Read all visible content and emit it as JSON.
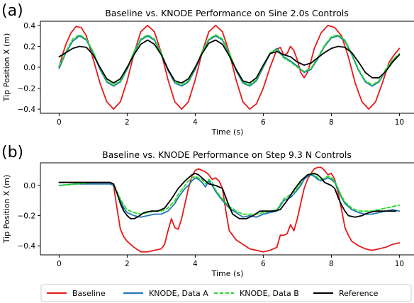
{
  "figure": {
    "panels": [
      {
        "label": "(a)",
        "title": "Baseline vs. KNODE Performance on Sine 2.0s Controls",
        "xlabel": "Time (s)",
        "ylabel": "Tip Position X (m)",
        "xticks": [
          "0",
          "2",
          "4",
          "6",
          "8",
          "10"
        ],
        "yticks": [
          "−0.4",
          "−0.2",
          "0.0",
          "0.2",
          "0.4"
        ]
      },
      {
        "label": "(b)",
        "title": "Baseline vs. KNODE Performance on Step 9.3 N Controls",
        "xlabel": "Time (s)",
        "ylabel": "Tip Position X (m)",
        "xticks": [
          "0",
          "2",
          "4",
          "6",
          "8",
          "10"
        ],
        "yticks": [
          "−0.4",
          "−0.2",
          "0.0"
        ]
      }
    ],
    "legend": [
      "Baseline",
      "KNODE, Data A",
      "KNODE, Data B",
      "Reference"
    ]
  },
  "chart_data": [
    {
      "type": "line",
      "title": "Baseline vs. KNODE Performance on Sine 2.0s Controls",
      "xlabel": "Time (s)",
      "ylabel": "Tip Position X (m)",
      "xlim": [
        -0.55,
        10.45
      ],
      "ylim": [
        -0.44,
        0.44
      ],
      "grid": false,
      "series": [
        {
          "name": "Baseline",
          "color": "#e8191b",
          "dash": "solid",
          "x": [
            0,
            0.1,
            0.2,
            0.35,
            0.5,
            0.65,
            0.8,
            1.0,
            1.2,
            1.4,
            1.6,
            1.8,
            2.0,
            2.2,
            2.4,
            2.6,
            2.8,
            3.0,
            3.2,
            3.4,
            3.6,
            3.8,
            4.0,
            4.2,
            4.4,
            4.6,
            4.8,
            5.0,
            5.2,
            5.4,
            5.6,
            5.8,
            6.0,
            6.2,
            6.4,
            6.5,
            6.6,
            6.7,
            6.8,
            6.9,
            7.0,
            7.1,
            7.2,
            7.3,
            7.4,
            7.5,
            7.7,
            7.9,
            8.1,
            8.3,
            8.5,
            8.7,
            8.9,
            9.1,
            9.3,
            9.5,
            9.7,
            9.85,
            10.0
          ],
          "y": [
            0.0,
            0.12,
            0.22,
            0.33,
            0.39,
            0.38,
            0.3,
            0.08,
            -0.15,
            -0.33,
            -0.4,
            -0.33,
            -0.13,
            0.13,
            0.34,
            0.4,
            0.34,
            0.14,
            -0.12,
            -0.33,
            -0.4,
            -0.33,
            -0.12,
            0.14,
            0.34,
            0.4,
            0.34,
            0.14,
            -0.12,
            -0.33,
            -0.4,
            -0.35,
            -0.2,
            0.0,
            0.17,
            0.19,
            0.12,
            0.13,
            0.2,
            0.16,
            0.07,
            -0.05,
            -0.1,
            -0.05,
            0.06,
            0.18,
            0.33,
            0.4,
            0.38,
            0.3,
            0.1,
            -0.15,
            -0.33,
            -0.4,
            -0.33,
            -0.15,
            0.05,
            0.12,
            0.18
          ]
        },
        {
          "name": "KNODE, Data A",
          "color": "#1f77b4",
          "dash": "solid",
          "x": [
            0,
            0.2,
            0.4,
            0.6,
            0.8,
            1.0,
            1.2,
            1.4,
            1.6,
            1.8,
            2.0,
            2.2,
            2.4,
            2.6,
            2.8,
            3.0,
            3.2,
            3.4,
            3.6,
            3.8,
            4.0,
            4.2,
            4.4,
            4.6,
            4.8,
            5.0,
            5.2,
            5.4,
            5.6,
            5.8,
            6.0,
            6.2,
            6.4,
            6.6,
            6.8,
            7.0,
            7.2,
            7.4,
            7.6,
            7.8,
            8.0,
            8.2,
            8.4,
            8.6,
            8.8,
            9.0,
            9.2,
            9.4,
            9.6,
            9.8,
            10.0
          ],
          "y": [
            -0.01,
            0.14,
            0.25,
            0.3,
            0.26,
            0.14,
            -0.02,
            -0.14,
            -0.18,
            -0.14,
            -0.02,
            0.14,
            0.26,
            0.3,
            0.26,
            0.13,
            -0.03,
            -0.15,
            -0.18,
            -0.14,
            -0.02,
            0.14,
            0.26,
            0.3,
            0.26,
            0.13,
            -0.03,
            -0.15,
            -0.18,
            -0.13,
            0.0,
            0.13,
            0.18,
            0.1,
            0.06,
            0.01,
            -0.05,
            -0.02,
            0.08,
            0.2,
            0.28,
            0.3,
            0.25,
            0.12,
            -0.03,
            -0.14,
            -0.18,
            -0.14,
            -0.03,
            0.06,
            0.12
          ]
        },
        {
          "name": "KNODE, Data B",
          "color": "#22dd22",
          "dash": "dashed",
          "x": [
            0,
            0.2,
            0.4,
            0.6,
            0.8,
            1.0,
            1.2,
            1.4,
            1.6,
            1.8,
            2.0,
            2.2,
            2.4,
            2.6,
            2.8,
            3.0,
            3.2,
            3.4,
            3.6,
            3.8,
            4.0,
            4.2,
            4.4,
            4.6,
            4.8,
            5.0,
            5.2,
            5.4,
            5.6,
            5.8,
            6.0,
            6.2,
            6.4,
            6.6,
            6.8,
            7.0,
            7.2,
            7.4,
            7.6,
            7.8,
            8.0,
            8.2,
            8.4,
            8.6,
            8.8,
            9.0,
            9.2,
            9.4,
            9.6,
            9.8,
            10.0
          ],
          "y": [
            0.01,
            0.15,
            0.27,
            0.31,
            0.27,
            0.15,
            -0.01,
            -0.13,
            -0.17,
            -0.13,
            -0.01,
            0.15,
            0.27,
            0.31,
            0.27,
            0.14,
            -0.02,
            -0.14,
            -0.17,
            -0.13,
            -0.01,
            0.15,
            0.27,
            0.31,
            0.27,
            0.14,
            -0.02,
            -0.14,
            -0.17,
            -0.12,
            0.01,
            0.14,
            0.17,
            0.09,
            0.05,
            0.0,
            -0.04,
            -0.01,
            0.09,
            0.21,
            0.29,
            0.31,
            0.26,
            0.13,
            -0.02,
            -0.13,
            -0.17,
            -0.13,
            -0.02,
            0.07,
            0.13
          ]
        },
        {
          "name": "Reference",
          "color": "#000000",
          "dash": "solid",
          "x": [
            0,
            0.2,
            0.4,
            0.6,
            0.8,
            1.0,
            1.2,
            1.4,
            1.6,
            1.8,
            2.0,
            2.2,
            2.4,
            2.6,
            2.8,
            3.0,
            3.2,
            3.4,
            3.6,
            3.8,
            4.0,
            4.2,
            4.4,
            4.6,
            4.8,
            5.0,
            5.2,
            5.4,
            5.6,
            5.8,
            6.0,
            6.2,
            6.4,
            6.6,
            6.8,
            7.0,
            7.2,
            7.4,
            7.6,
            7.8,
            8.0,
            8.2,
            8.4,
            8.6,
            8.8,
            9.0,
            9.2,
            9.4,
            9.6,
            9.8,
            10.0
          ],
          "y": [
            0.1,
            0.14,
            0.18,
            0.2,
            0.19,
            0.12,
            0.0,
            -0.11,
            -0.15,
            -0.11,
            0.0,
            0.12,
            0.22,
            0.26,
            0.22,
            0.12,
            -0.02,
            -0.13,
            -0.15,
            -0.11,
            0.0,
            0.13,
            0.23,
            0.26,
            0.22,
            0.11,
            -0.02,
            -0.13,
            -0.15,
            -0.1,
            0.02,
            0.13,
            0.15,
            0.12,
            0.1,
            0.05,
            0.02,
            0.04,
            0.09,
            0.14,
            0.18,
            0.2,
            0.19,
            0.14,
            0.05,
            -0.05,
            -0.1,
            -0.1,
            -0.04,
            0.05,
            0.12
          ]
        }
      ]
    },
    {
      "type": "line",
      "title": "Baseline vs. KNODE Performance on Step 9.3 N Controls",
      "xlabel": "Time (s)",
      "ylabel": "Tip Position X (m)",
      "xlim": [
        -0.55,
        10.45
      ],
      "ylim": [
        -0.46,
        0.15
      ],
      "grid": false,
      "series": [
        {
          "name": "Baseline",
          "color": "#e8191b",
          "dash": "solid",
          "x": [
            0,
            0.5,
            1.0,
            1.5,
            1.6,
            1.7,
            1.8,
            1.9,
            2.0,
            2.2,
            2.4,
            2.6,
            2.8,
            3.0,
            3.1,
            3.2,
            3.3,
            3.4,
            3.5,
            3.6,
            3.7,
            3.8,
            3.9,
            4.0,
            4.1,
            4.2,
            4.3,
            4.4,
            4.5,
            4.6,
            4.7,
            4.8,
            4.9,
            5.0,
            5.2,
            5.4,
            5.6,
            5.8,
            6.0,
            6.2,
            6.4,
            6.5,
            6.6,
            6.7,
            6.8,
            6.9,
            7.0,
            7.1,
            7.2,
            7.3,
            7.4,
            7.5,
            7.6,
            7.7,
            7.8,
            7.9,
            8.0,
            8.1,
            8.2,
            8.3,
            8.4,
            8.5,
            8.6,
            8.8,
            9.0,
            9.2,
            9.4,
            9.6,
            9.8,
            10.0
          ],
          "y": [
            0.02,
            0.02,
            0.02,
            0.02,
            0.0,
            -0.15,
            -0.29,
            -0.34,
            -0.37,
            -0.41,
            -0.44,
            -0.44,
            -0.43,
            -0.42,
            -0.39,
            -0.3,
            -0.22,
            -0.28,
            -0.29,
            -0.22,
            -0.12,
            -0.02,
            0.06,
            0.1,
            0.11,
            0.1,
            0.09,
            0.07,
            0.04,
            0.05,
            0.03,
            -0.02,
            -0.17,
            -0.3,
            -0.36,
            -0.39,
            -0.42,
            -0.43,
            -0.44,
            -0.43,
            -0.41,
            -0.33,
            -0.33,
            -0.32,
            -0.26,
            -0.3,
            -0.22,
            -0.12,
            -0.02,
            0.04,
            0.08,
            0.11,
            0.12,
            0.12,
            0.1,
            0.07,
            0.08,
            0.04,
            -0.05,
            -0.16,
            -0.28,
            -0.33,
            -0.37,
            -0.4,
            -0.42,
            -0.43,
            -0.42,
            -0.41,
            -0.39,
            -0.38
          ]
        },
        {
          "name": "KNODE, Data A",
          "color": "#1f77b4",
          "dash": "solid",
          "x": [
            0,
            0.5,
            1.0,
            1.5,
            1.6,
            1.7,
            1.8,
            1.9,
            2.0,
            2.2,
            2.4,
            2.6,
            2.8,
            3.0,
            3.2,
            3.4,
            3.5,
            3.6,
            3.7,
            3.8,
            3.9,
            4.0,
            4.1,
            4.2,
            4.3,
            4.4,
            4.5,
            4.6,
            4.8,
            5.0,
            5.2,
            5.4,
            5.6,
            5.8,
            6.0,
            6.2,
            6.4,
            6.6,
            6.8,
            7.0,
            7.1,
            7.2,
            7.3,
            7.4,
            7.5,
            7.6,
            7.7,
            7.8,
            7.9,
            8.0,
            8.1,
            8.2,
            8.3,
            8.4,
            8.6,
            8.8,
            9.0,
            9.2,
            9.4,
            9.6,
            9.8,
            10.0
          ],
          "y": [
            0.0,
            0.01,
            0.01,
            0.01,
            0.0,
            -0.05,
            -0.1,
            -0.15,
            -0.18,
            -0.2,
            -0.21,
            -0.2,
            -0.19,
            -0.19,
            -0.17,
            -0.12,
            -0.08,
            -0.05,
            -0.02,
            0.0,
            0.03,
            0.05,
            0.04,
            0.02,
            -0.01,
            0.03,
            0.0,
            -0.04,
            -0.1,
            -0.15,
            -0.18,
            -0.21,
            -0.2,
            -0.21,
            -0.19,
            -0.18,
            -0.17,
            -0.1,
            -0.08,
            -0.03,
            0.0,
            0.04,
            0.06,
            0.07,
            0.06,
            0.04,
            0.03,
            0.04,
            0.05,
            0.04,
            0.02,
            -0.03,
            -0.08,
            -0.12,
            -0.16,
            -0.18,
            -0.19,
            -0.19,
            -0.18,
            -0.17,
            -0.16,
            -0.17
          ]
        },
        {
          "name": "KNODE, Data B",
          "color": "#22dd22",
          "dash": "dashed",
          "x": [
            0,
            0.5,
            1.0,
            1.5,
            1.6,
            1.7,
            1.8,
            1.9,
            2.0,
            2.2,
            2.4,
            2.6,
            2.8,
            3.0,
            3.2,
            3.4,
            3.5,
            3.6,
            3.7,
            3.8,
            3.9,
            4.0,
            4.1,
            4.2,
            4.3,
            4.4,
            4.5,
            4.6,
            4.8,
            5.0,
            5.2,
            5.4,
            5.6,
            5.8,
            6.0,
            6.2,
            6.4,
            6.6,
            6.8,
            7.0,
            7.1,
            7.2,
            7.3,
            7.4,
            7.5,
            7.6,
            7.7,
            7.8,
            7.9,
            8.0,
            8.1,
            8.2,
            8.3,
            8.4,
            8.6,
            8.8,
            9.0,
            9.2,
            9.4,
            9.6,
            9.8,
            10.0
          ],
          "y": [
            0.0,
            0.01,
            0.02,
            0.02,
            0.01,
            -0.04,
            -0.09,
            -0.13,
            -0.16,
            -0.18,
            -0.19,
            -0.18,
            -0.17,
            -0.17,
            -0.15,
            -0.1,
            -0.06,
            -0.03,
            0.0,
            0.03,
            0.05,
            0.06,
            0.05,
            0.04,
            0.01,
            0.04,
            0.02,
            -0.03,
            -0.09,
            -0.14,
            -0.17,
            -0.19,
            -0.19,
            -0.19,
            -0.18,
            -0.17,
            -0.16,
            -0.09,
            -0.06,
            -0.02,
            0.02,
            0.05,
            0.07,
            0.08,
            0.07,
            0.05,
            0.04,
            0.05,
            0.06,
            0.05,
            0.03,
            -0.02,
            -0.07,
            -0.11,
            -0.15,
            -0.17,
            -0.17,
            -0.17,
            -0.16,
            -0.15,
            -0.14,
            -0.13
          ]
        },
        {
          "name": "Reference",
          "color": "#000000",
          "dash": "solid",
          "x": [
            0,
            0.5,
            1.0,
            1.5,
            1.6,
            1.7,
            1.8,
            1.9,
            2.0,
            2.1,
            2.2,
            2.3,
            2.5,
            2.7,
            2.9,
            3.1,
            3.3,
            3.5,
            3.7,
            3.9,
            4.0,
            4.1,
            4.2,
            4.4,
            4.6,
            4.8,
            4.9,
            5.0,
            5.1,
            5.3,
            5.5,
            5.7,
            5.9,
            6.1,
            6.3,
            6.5,
            6.7,
            6.9,
            7.1,
            7.3,
            7.5,
            7.6,
            7.7,
            7.8,
            8.0,
            8.1,
            8.2,
            8.3,
            8.4,
            8.5,
            8.7,
            8.9,
            9.1,
            9.3,
            9.5,
            9.7,
            9.9
          ],
          "y": [
            0.02,
            0.02,
            0.02,
            0.02,
            0.01,
            -0.05,
            -0.12,
            -0.17,
            -0.2,
            -0.22,
            -0.22,
            -0.21,
            -0.18,
            -0.17,
            -0.17,
            -0.15,
            -0.09,
            -0.02,
            0.03,
            0.07,
            0.08,
            0.07,
            0.05,
            0.01,
            0.0,
            -0.02,
            -0.08,
            -0.14,
            -0.19,
            -0.22,
            -0.22,
            -0.2,
            -0.17,
            -0.17,
            -0.17,
            -0.16,
            -0.1,
            -0.03,
            0.03,
            0.07,
            0.08,
            0.07,
            0.05,
            0.02,
            0.0,
            -0.02,
            -0.08,
            -0.13,
            -0.17,
            -0.2,
            -0.21,
            -0.2,
            -0.18,
            -0.17,
            -0.17,
            -0.17,
            -0.17
          ]
        }
      ]
    }
  ]
}
